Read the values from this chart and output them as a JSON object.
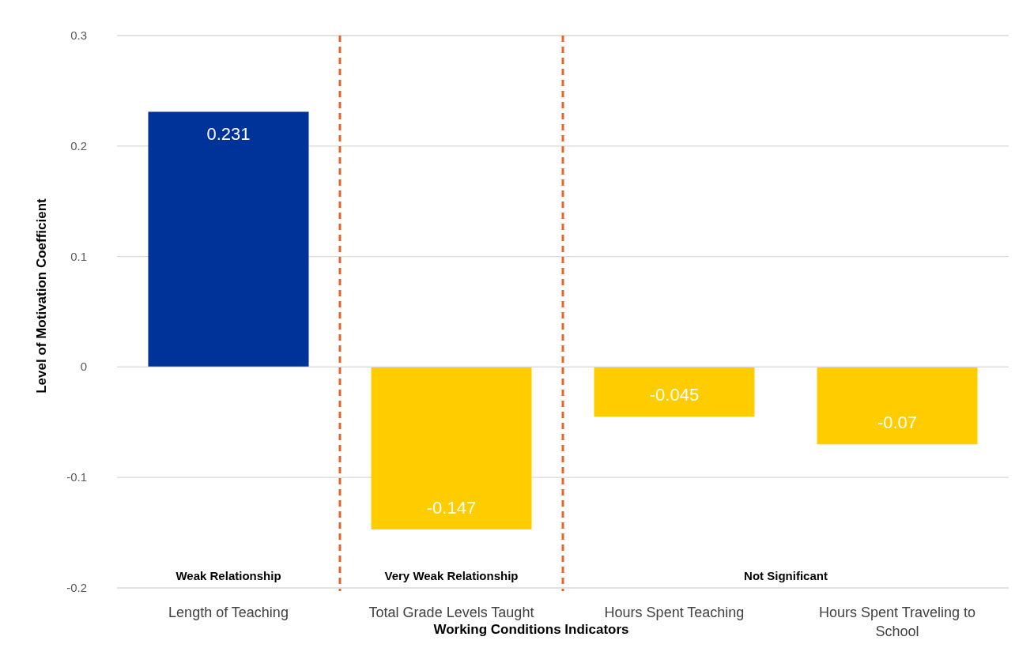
{
  "chart_data": {
    "type": "bar",
    "xlabel": "Working Conditions Indicators",
    "ylabel": "Level of Motivation Coefficient",
    "categories": [
      "Length of Teaching",
      "Total Grade Levels Taught",
      "Hours Spent Teaching",
      "Hours Spent Traveling to School"
    ],
    "values": [
      0.231,
      -0.147,
      -0.045,
      -0.07
    ],
    "colors": [
      "#003399",
      "#ffcc00",
      "#ffcc00",
      "#ffcc00"
    ],
    "ylim": [
      -0.2,
      0.3
    ],
    "yticks": [
      -0.2,
      -0.1,
      0,
      0.1,
      0.2,
      0.3
    ],
    "grid": "y",
    "data_labels": true,
    "annotations": [
      "Weak Relationship",
      "Very Weak Relationship",
      "Not Significant"
    ]
  }
}
